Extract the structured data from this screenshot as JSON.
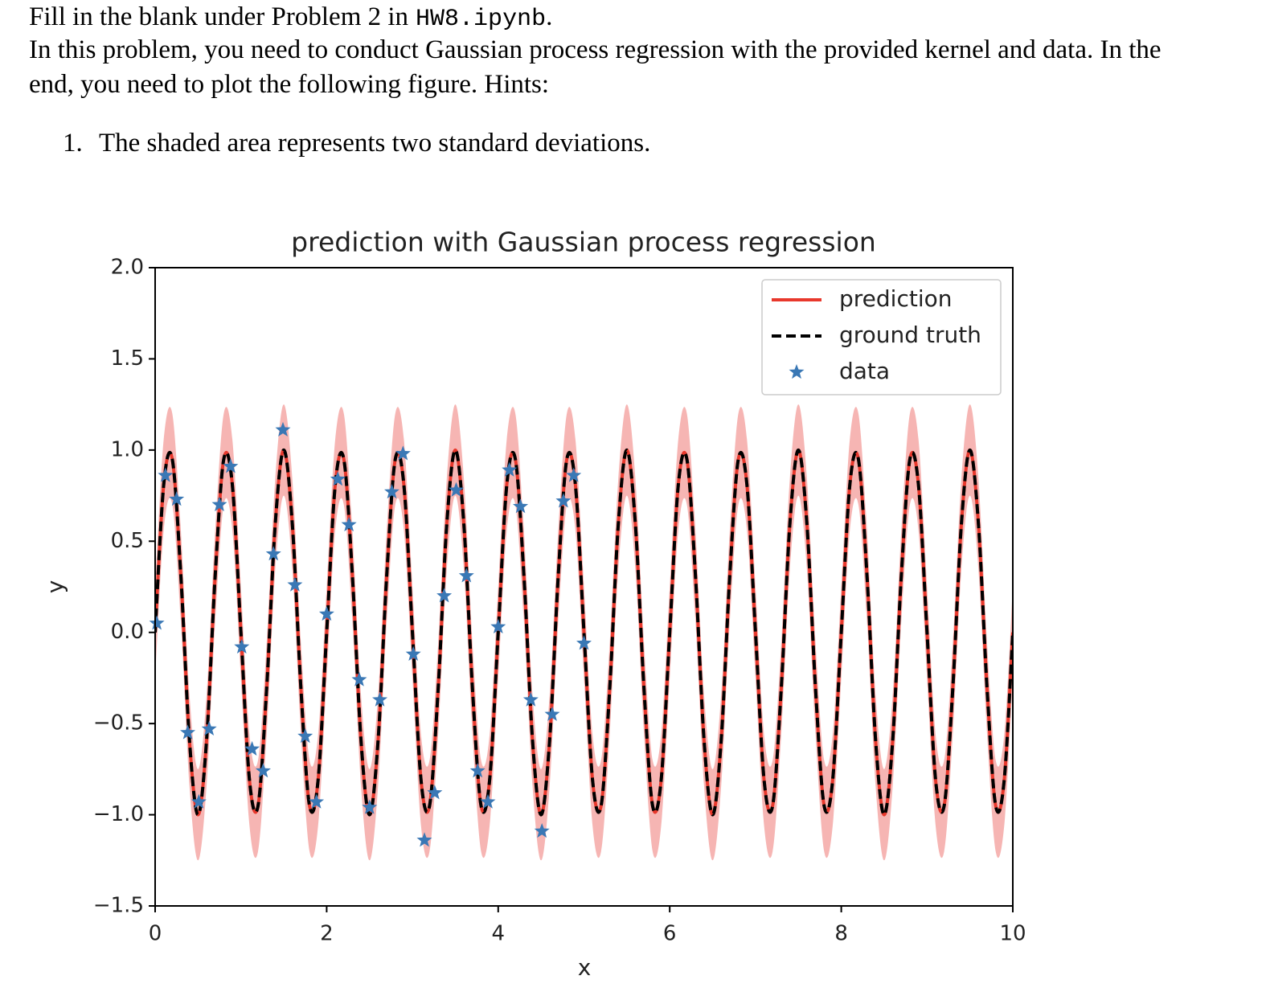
{
  "doc": {
    "line1": [
      "Fill in the blank under Problem 2 in",
      "HW8.ipynb",
      "."
    ],
    "paragraph": "In this problem, you need to conduct Gaussian process regression with the provided kernel and data. In the end, you need to plot the following figure. Hints:",
    "hints": [
      {
        "number": "1.",
        "text": "The shaded area represents two standard deviations."
      }
    ]
  },
  "chart_data": {
    "type": "line",
    "title": "prediction with Gaussian process regression",
    "x_label": "x",
    "y_label": "y",
    "xlim": [
      0,
      10
    ],
    "ylim": [
      -1.5,
      2.0
    ],
    "xticks": [
      0,
      2,
      4,
      6,
      8,
      10
    ],
    "yticks": [
      {
        "value": -1.5,
        "label": "−1.5"
      },
      {
        "value": -1.0,
        "label": "−1.0"
      },
      {
        "value": -0.5,
        "label": "−0.5"
      },
      {
        "value": 0,
        "label": "0.0"
      },
      0.5,
      {
        "value": 1.0,
        "label": "1.0"
      },
      1.5,
      {
        "value": 2.0,
        "label": "2.0"
      }
    ],
    "legend": "upper right",
    "x": [
      0,
      0.1,
      0.2,
      0.3,
      0.4,
      0.5,
      0.6,
      0.7,
      0.8,
      0.9,
      1,
      1.1,
      1.2,
      1.3,
      1.4,
      1.5,
      1.6,
      1.7,
      1.8,
      1.9,
      2,
      2.1,
      2.2,
      2.3,
      2.4,
      2.5,
      2.6,
      2.7,
      2.8,
      2.9,
      3,
      3.1,
      3.2,
      3.3,
      3.4,
      3.5,
      3.6,
      3.7,
      3.8,
      3.9,
      4,
      4.1,
      4.2,
      4.3,
      4.4,
      4.5,
      4.6,
      4.7,
      4.8,
      4.9,
      5,
      5.1,
      5.2,
      5.3,
      5.4,
      5.5,
      5.6,
      5.7,
      5.8,
      5.9,
      6,
      6.1,
      6.2,
      6.3,
      6.4,
      6.5,
      6.6,
      6.7,
      6.8,
      6.9,
      7,
      7.1,
      7.2,
      7.3,
      7.4,
      7.5,
      7.6,
      7.7,
      7.8,
      7.9,
      8,
      8.1,
      8.2,
      8.3,
      8.4,
      8.5,
      8.6,
      8.7,
      8.8,
      8.9,
      9,
      9.1,
      9.2,
      9.3,
      9.4,
      9.5,
      9.6,
      9.7,
      9.8,
      9.9,
      10
    ],
    "band": {
      "color": "#f4a3a0",
      "upper": [
        0.25,
        1.06,
        1.2,
        0.56,
        -0.34,
        -0.75,
        -0.34,
        0.56,
        1.2,
        1.06,
        0.25,
        -0.56,
        -0.7,
        -0.06,
        0.84,
        1.25,
        0.84,
        -0.06,
        -0.7,
        -0.56,
        0.25,
        1.06,
        1.2,
        0.56,
        -0.34,
        -0.75,
        -0.34,
        0.56,
        1.2,
        1.06,
        0.25,
        -0.56,
        -0.7,
        -0.06,
        0.84,
        1.25,
        0.84,
        -0.06,
        -0.7,
        -0.56,
        0.25,
        1.06,
        1.2,
        0.56,
        -0.34,
        -0.75,
        -0.34,
        0.56,
        1.2,
        1.06,
        0.25,
        -0.56,
        -0.7,
        -0.06,
        0.84,
        1.25,
        0.84,
        -0.06,
        -0.7,
        -0.56,
        0.25,
        1.06,
        1.2,
        0.56,
        -0.34,
        -0.75,
        -0.34,
        0.56,
        1.2,
        1.06,
        0.25,
        -0.56,
        -0.7,
        -0.06,
        0.84,
        1.25,
        0.84,
        -0.06,
        -0.7,
        -0.56,
        0.25,
        1.06,
        1.2,
        0.56,
        -0.34,
        -0.75,
        -0.34,
        0.56,
        1.2,
        1.06,
        0.25,
        -0.56,
        -0.7,
        -0.06,
        0.84,
        1.25,
        0.84,
        -0.06,
        -0.7,
        -0.56,
        0.25
      ],
      "lower": [
        -0.25,
        0.56,
        0.7,
        0.06,
        -0.84,
        -1.25,
        -0.84,
        0.06,
        0.7,
        0.56,
        -0.25,
        -1.06,
        -1.2,
        -0.56,
        0.34,
        0.75,
        0.34,
        -0.56,
        -1.2,
        -1.06,
        -0.25,
        0.56,
        0.7,
        0.06,
        -0.84,
        -1.25,
        -0.84,
        0.06,
        0.7,
        0.56,
        -0.25,
        -1.06,
        -1.2,
        -0.56,
        0.34,
        0.75,
        0.34,
        -0.56,
        -1.2,
        -1.06,
        -0.25,
        0.56,
        0.7,
        0.06,
        -0.84,
        -1.25,
        -0.84,
        0.06,
        0.7,
        0.56,
        -0.25,
        -1.06,
        -1.2,
        -0.56,
        0.34,
        0.75,
        0.34,
        -0.56,
        -1.2,
        -1.06,
        -0.25,
        0.56,
        0.7,
        0.06,
        -0.84,
        -1.25,
        -0.84,
        0.06,
        0.7,
        0.56,
        -0.25,
        -1.06,
        -1.2,
        -0.56,
        0.34,
        0.75,
        0.34,
        -0.56,
        -1.2,
        -1.06,
        -0.25,
        0.56,
        0.7,
        0.06,
        -0.84,
        -1.25,
        -0.84,
        0.06,
        0.7,
        0.56,
        -0.25,
        -1.06,
        -1.2,
        -0.56,
        0.34,
        0.75,
        0.34,
        -0.56,
        -1.2,
        -1.06,
        -0.25
      ]
    },
    "series": [
      {
        "name": "prediction",
        "color": "#e8382c",
        "style": "solid",
        "values": [
          0,
          0.81,
          0.95,
          0.31,
          -0.59,
          -1,
          -0.59,
          0.31,
          0.95,
          0.81,
          0,
          -0.81,
          -0.95,
          -0.31,
          0.59,
          1,
          0.59,
          -0.31,
          -0.95,
          -0.81,
          0,
          0.81,
          0.95,
          0.31,
          -0.59,
          -1,
          -0.59,
          0.31,
          0.95,
          0.81,
          0,
          -0.81,
          -0.95,
          -0.31,
          0.59,
          1,
          0.59,
          -0.31,
          -0.95,
          -0.81,
          0,
          0.81,
          0.95,
          0.31,
          -0.59,
          -1,
          -0.59,
          0.31,
          0.95,
          0.81,
          0,
          -0.81,
          -0.95,
          -0.31,
          0.59,
          1,
          0.59,
          -0.31,
          -0.95,
          -0.81,
          0,
          0.81,
          0.95,
          0.31,
          -0.59,
          -1,
          -0.59,
          0.31,
          0.95,
          0.81,
          0,
          -0.81,
          -0.95,
          -0.31,
          0.59,
          1,
          0.59,
          -0.31,
          -0.95,
          -0.81,
          0,
          0.81,
          0.95,
          0.31,
          -0.59,
          -1,
          -0.59,
          0.31,
          0.95,
          0.81,
          0,
          -0.81,
          -0.95,
          -0.31,
          0.59,
          1,
          0.59,
          -0.31,
          -0.95,
          -0.81,
          0
        ]
      },
      {
        "name": "ground truth",
        "color": "#000000",
        "style": "dashed",
        "values": [
          0,
          0.81,
          0.95,
          0.31,
          -0.59,
          -1,
          -0.59,
          0.31,
          0.95,
          0.81,
          0,
          -0.81,
          -0.95,
          -0.31,
          0.59,
          1,
          0.59,
          -0.31,
          -0.95,
          -0.81,
          0,
          0.81,
          0.95,
          0.31,
          -0.59,
          -1,
          -0.59,
          0.31,
          0.95,
          0.81,
          0,
          -0.81,
          -0.95,
          -0.31,
          0.59,
          1,
          0.59,
          -0.31,
          -0.95,
          -0.81,
          0,
          0.81,
          0.95,
          0.31,
          -0.59,
          -1,
          -0.59,
          0.31,
          0.95,
          0.81,
          0,
          -0.81,
          -0.95,
          -0.31,
          0.59,
          1,
          0.59,
          -0.31,
          -0.95,
          -0.81,
          0,
          0.81,
          0.95,
          0.31,
          -0.59,
          -1,
          -0.59,
          0.31,
          0.95,
          0.81,
          0,
          -0.81,
          -0.95,
          -0.31,
          0.59,
          1,
          0.59,
          -0.31,
          -0.95,
          -0.81,
          0,
          0.81,
          0.95,
          0.31,
          -0.59,
          -1,
          -0.59,
          0.31,
          0.95,
          0.81,
          0,
          -0.81,
          -0.95,
          -0.31,
          0.59,
          1,
          0.59,
          -0.31,
          -0.95,
          -0.81,
          0
        ]
      },
      {
        "name": "data",
        "color": "#3a78b5",
        "style": "star",
        "x": [
          0.02,
          0.12,
          0.25,
          0.38,
          0.51,
          0.63,
          0.75,
          0.88,
          1.01,
          1.13,
          1.26,
          1.38,
          1.49,
          1.63,
          1.75,
          1.88,
          2.0,
          2.13,
          2.26,
          2.38,
          2.5,
          2.62,
          2.76,
          2.89,
          3.01,
          3.14,
          3.26,
          3.37,
          3.51,
          3.63,
          3.76,
          3.88,
          4.0,
          4.13,
          4.26,
          4.38,
          4.51,
          4.63,
          4.76,
          4.88,
          5.0
        ],
        "values": [
          0.05,
          0.86,
          0.73,
          -0.55,
          -0.93,
          -0.53,
          0.7,
          0.91,
          -0.08,
          -0.64,
          -0.76,
          0.43,
          1.11,
          0.26,
          -0.57,
          -0.93,
          0.1,
          0.84,
          0.59,
          -0.26,
          -0.96,
          -0.37,
          0.77,
          0.98,
          -0.12,
          -1.14,
          -0.88,
          0.2,
          0.78,
          0.31,
          -0.76,
          -0.93,
          0.03,
          0.89,
          0.69,
          -0.37,
          -1.09,
          -0.45,
          0.72,
          0.86,
          -0.06
        ]
      }
    ]
  }
}
